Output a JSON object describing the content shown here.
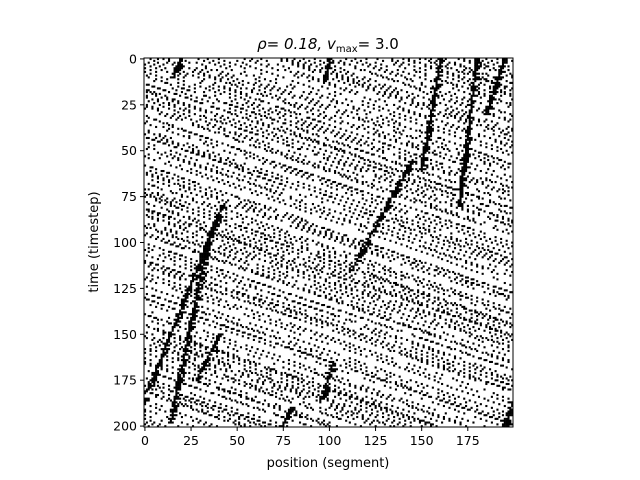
{
  "chart_data": {
    "type": "heatmap",
    "description": "Space-time diagram of a traffic cellular automaton (black = occupied cell)",
    "title": "ρ= 0.18, v",
    "title_sub": "max",
    "title_suffix": "= 3.0",
    "density": 0.18,
    "vmax": 3.0,
    "xlabel": "position (segment)",
    "ylabel": "time (timestep)",
    "xlim": [
      0,
      199
    ],
    "ylim": [
      200,
      0
    ],
    "n_positions": 200,
    "n_timesteps": 201,
    "xticks": [
      0,
      25,
      50,
      75,
      100,
      125,
      150,
      175
    ],
    "yticks": [
      0,
      25,
      50,
      75,
      100,
      125,
      150,
      175,
      200
    ],
    "cell_color_occupied": "#000000",
    "cell_color_empty": "#ffffff",
    "jams": [
      {
        "x_start": 42,
        "t_start": 80,
        "x_end": 2,
        "t_end": 180
      },
      {
        "x_start": 35,
        "t_start": 95,
        "x_end": 14,
        "t_end": 198
      },
      {
        "x_start": 40,
        "t_start": 150,
        "x_end": 28,
        "t_end": 175
      },
      {
        "x_start": 145,
        "t_start": 55,
        "x_end": 112,
        "t_end": 115
      },
      {
        "x_start": 160,
        "t_start": 0,
        "x_end": 150,
        "t_end": 60
      },
      {
        "x_start": 102,
        "t_start": 165,
        "x_end": 96,
        "t_end": 185
      },
      {
        "x_start": 80,
        "t_start": 190,
        "x_end": 74,
        "t_end": 200
      },
      {
        "x_start": 180,
        "t_start": 0,
        "x_end": 170,
        "t_end": 80
      },
      {
        "x_start": 195,
        "t_start": 0,
        "x_end": 185,
        "t_end": 30
      },
      {
        "x_start": 20,
        "t_start": 0,
        "x_end": 15,
        "t_end": 10
      },
      {
        "x_start": 100,
        "t_start": 0,
        "x_end": 97,
        "t_end": 12
      },
      {
        "x_start": 200,
        "t_start": 185,
        "x_end": 195,
        "t_end": 200
      }
    ]
  }
}
